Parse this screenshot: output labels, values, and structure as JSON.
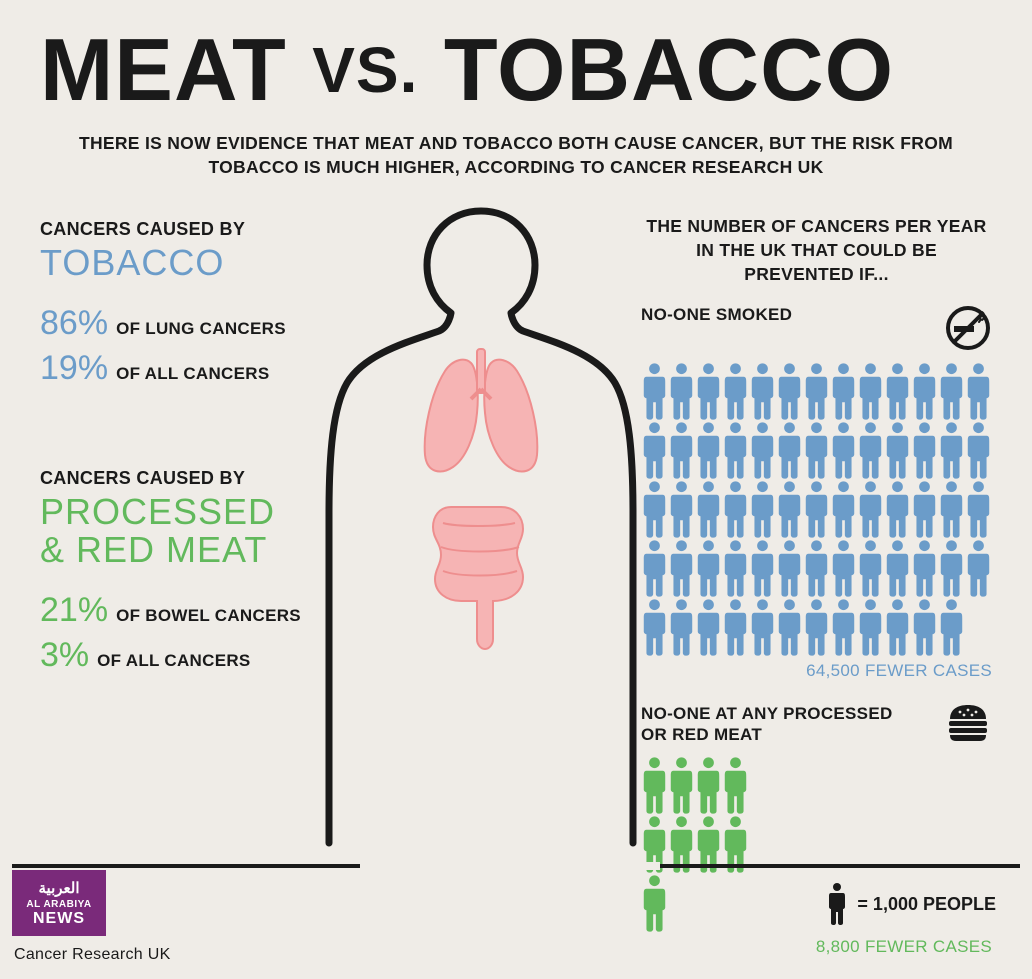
{
  "colors": {
    "background": "#efece7",
    "text": "#1a1a1a",
    "tobacco": "#6b9cc9",
    "meat": "#62b95c",
    "organ": "#f6b4b4",
    "organ_stroke": "#ee8e8e",
    "logo_bg": "#7a2a7a",
    "logo_text": "#ffffff"
  },
  "headline": {
    "word1": "MEAT",
    "vs": "VS.",
    "word2": "TOBACCO",
    "fontsize": 88,
    "vs_fontsize": 64
  },
  "subhead": "THERE IS NOW EVIDENCE THAT MEAT AND TOBACCO BOTH CAUSE CANCER, BUT THE RISK FROM TOBACCO IS MUCH HIGHER, ACCORDING TO CANCER RESEARCH UK",
  "left": {
    "tobacco": {
      "lead": "CANCERS CAUSED BY",
      "title": "TOBACCO",
      "stats": [
        {
          "num": "86%",
          "txt": "OF LUNG CANCERS"
        },
        {
          "num": "19%",
          "txt": "OF ALL CANCERS"
        }
      ]
    },
    "meat": {
      "lead": "CANCERS CAUSED BY",
      "title_line1": "PROCESSED",
      "title_line2": "& RED MEAT",
      "stats": [
        {
          "num": "21%",
          "txt": "OF BOWEL CANCERS"
        },
        {
          "num": "3%",
          "txt": "OF ALL CANCERS"
        }
      ]
    }
  },
  "right": {
    "lead": "THE NUMBER OF CANCERS PER YEAR IN THE UK THAT COULD BE PREVENTED IF...",
    "scenarios": [
      {
        "title": "NO-ONE SMOKED",
        "icon": "no-smoking",
        "color": "#6b9cc9",
        "rows": 5,
        "cols": 13,
        "last_row_count": 12,
        "person_width": 27,
        "fewer": "64,500 FEWER CASES"
      },
      {
        "title_line1": "NO-ONE AT ANY PROCESSED",
        "title_line2": "OR RED MEAT",
        "icon": "burger",
        "color": "#62b95c",
        "rows": 3,
        "cols": 4,
        "last_row_count": 1,
        "person_width": 27,
        "fewer": "8,800 FEWER CASES"
      }
    ]
  },
  "legend": {
    "equals": "= 1,000 PEOPLE"
  },
  "logo": {
    "arabic": "العربية",
    "line1": "AL ARABIYA",
    "line2": "NEWS"
  },
  "source": "Cancer Research UK"
}
